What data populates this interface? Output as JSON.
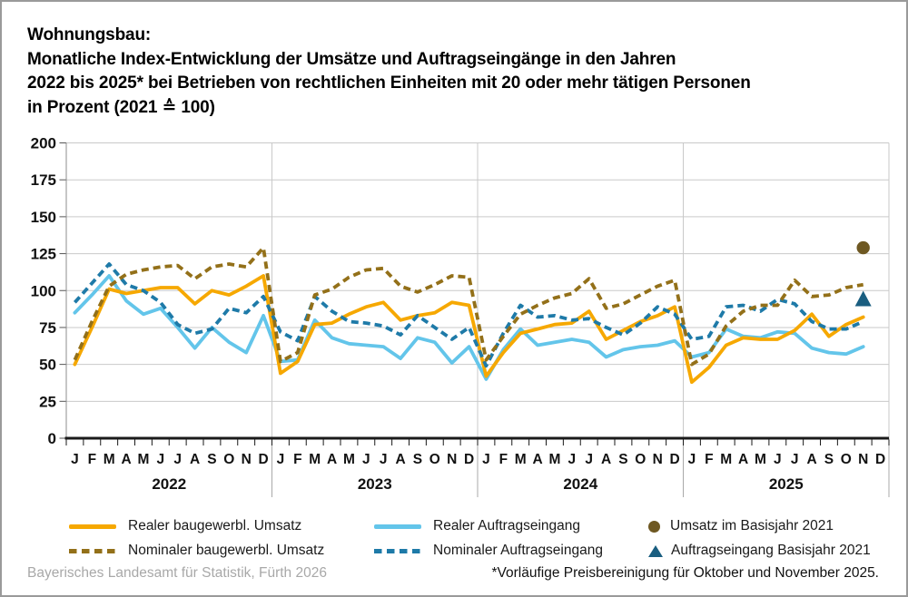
{
  "title": {
    "line1": "Wohnungsbau:",
    "line2": "Monatliche Index-Entwicklung der Umsätze und Auftragseingänge in den Jahren",
    "line3": "2022 bis 2025* bei Betrieben von rechtlichen Einheiten mit 20 oder mehr tätigen Personen",
    "line4": "in Prozent (2021 ≙ 100)"
  },
  "footer": {
    "source": "Bayerisches Landesamt für Statistik, Fürth 2026",
    "note": "*Vorläufige Preisbereinigung für Oktober und November 2025."
  },
  "colors": {
    "real_umsatz": "#F6A800",
    "nominal_umsatz": "#937019",
    "real_auftragseingang": "#63C5EA",
    "nominal_auftragseingang": "#1E7AA8",
    "marker_umsatz": "#6E5822",
    "marker_auftragseingang": "#1A5E80",
    "grid": "#C9C9C9",
    "axis": "#1A1A1A"
  },
  "legend": {
    "items": [
      {
        "label": "Realer baugewerbl. Umsatz",
        "swatch": "line-solid",
        "color": "#F6A800"
      },
      {
        "label": "Nominaler baugewerbl. Umsatz",
        "swatch": "line-dashed",
        "color": "#937019"
      },
      {
        "label": "Realer Auftragseingang",
        "swatch": "line-solid",
        "color": "#63C5EA"
      },
      {
        "label": "Nominaler Auftragseingang",
        "swatch": "line-dashed",
        "color": "#1E7AA8"
      },
      {
        "label": "Umsatz im Basisjahr 2021",
        "swatch": "dot",
        "color": "#6E5822"
      },
      {
        "label": "Auftragseingang Basisjahr 2021",
        "swatch": "triangle",
        "color": "#1A5E80"
      }
    ]
  },
  "chart_data": {
    "type": "line",
    "ylim": [
      0,
      200
    ],
    "y_axis": {
      "max": 200,
      "ticks": [
        0,
        25,
        50,
        75,
        100,
        125,
        150,
        175,
        200
      ]
    },
    "x_axis": {
      "month_labels": [
        "J",
        "F",
        "M",
        "A",
        "M",
        "J",
        "J",
        "A",
        "S",
        "O",
        "N",
        "D"
      ],
      "years": [
        "2022",
        "2023",
        "2024",
        "2025"
      ]
    },
    "grid": "horizontal-gridlines-and-year-separators",
    "legend_position": "bottom",
    "series": [
      {
        "name": "Realer baugewerbl. Umsatz",
        "color": "#F6A800",
        "style": "solid",
        "values": [
          50,
          75,
          101,
          98,
          100,
          102,
          102,
          91,
          100,
          97,
          103,
          110,
          44,
          52,
          77,
          78,
          84,
          89,
          92,
          80,
          83,
          85,
          92,
          90,
          42,
          58,
          71,
          74,
          77,
          78,
          86,
          67,
          73,
          79,
          83,
          89,
          38,
          48,
          63,
          68,
          67,
          67,
          73,
          84,
          69,
          77,
          82,
          null
        ]
      },
      {
        "name": "Nominaler baugewerbl. Umsatz",
        "color": "#937019",
        "style": "dashed",
        "values": [
          53,
          79,
          103,
          111,
          114,
          116,
          117,
          108,
          116,
          118,
          116,
          129,
          52,
          58,
          97,
          101,
          109,
          114,
          115,
          103,
          99,
          104,
          110,
          109,
          53,
          69,
          84,
          90,
          95,
          98,
          108,
          88,
          91,
          97,
          103,
          107,
          50,
          57,
          76,
          86,
          90,
          90,
          107,
          96,
          97,
          102,
          104,
          null
        ]
      },
      {
        "name": "Realer Auftragseingang",
        "color": "#63C5EA",
        "style": "solid",
        "values": [
          85,
          97,
          110,
          93,
          84,
          88,
          75,
          61,
          75,
          65,
          58,
          83,
          52,
          53,
          80,
          68,
          64,
          63,
          62,
          54,
          68,
          65,
          51,
          62,
          40,
          60,
          74,
          63,
          65,
          67,
          65,
          55,
          60,
          62,
          63,
          66,
          55,
          58,
          74,
          69,
          68,
          72,
          71,
          61,
          58,
          57,
          62,
          null
        ]
      },
      {
        "name": "Nominaler Auftragseingang",
        "color": "#1E7AA8",
        "style": "dashed",
        "values": [
          92,
          105,
          118,
          104,
          100,
          92,
          77,
          71,
          74,
          88,
          85,
          96,
          72,
          66,
          96,
          86,
          79,
          78,
          76,
          70,
          83,
          75,
          67,
          75,
          49,
          71,
          90,
          82,
          83,
          80,
          81,
          75,
          70,
          78,
          89,
          84,
          67,
          69,
          89,
          90,
          86,
          94,
          91,
          79,
          74,
          74,
          79,
          null
        ]
      }
    ],
    "markers": [
      {
        "name": "Umsatz im Basisjahr 2021",
        "shape": "circle",
        "color": "#6E5822",
        "month_index": 46,
        "value": 129
      },
      {
        "name": "Auftragseingang Basisjahr 2021",
        "shape": "triangle",
        "color": "#1A5E80",
        "month_index": 46,
        "value": 94
      }
    ]
  }
}
